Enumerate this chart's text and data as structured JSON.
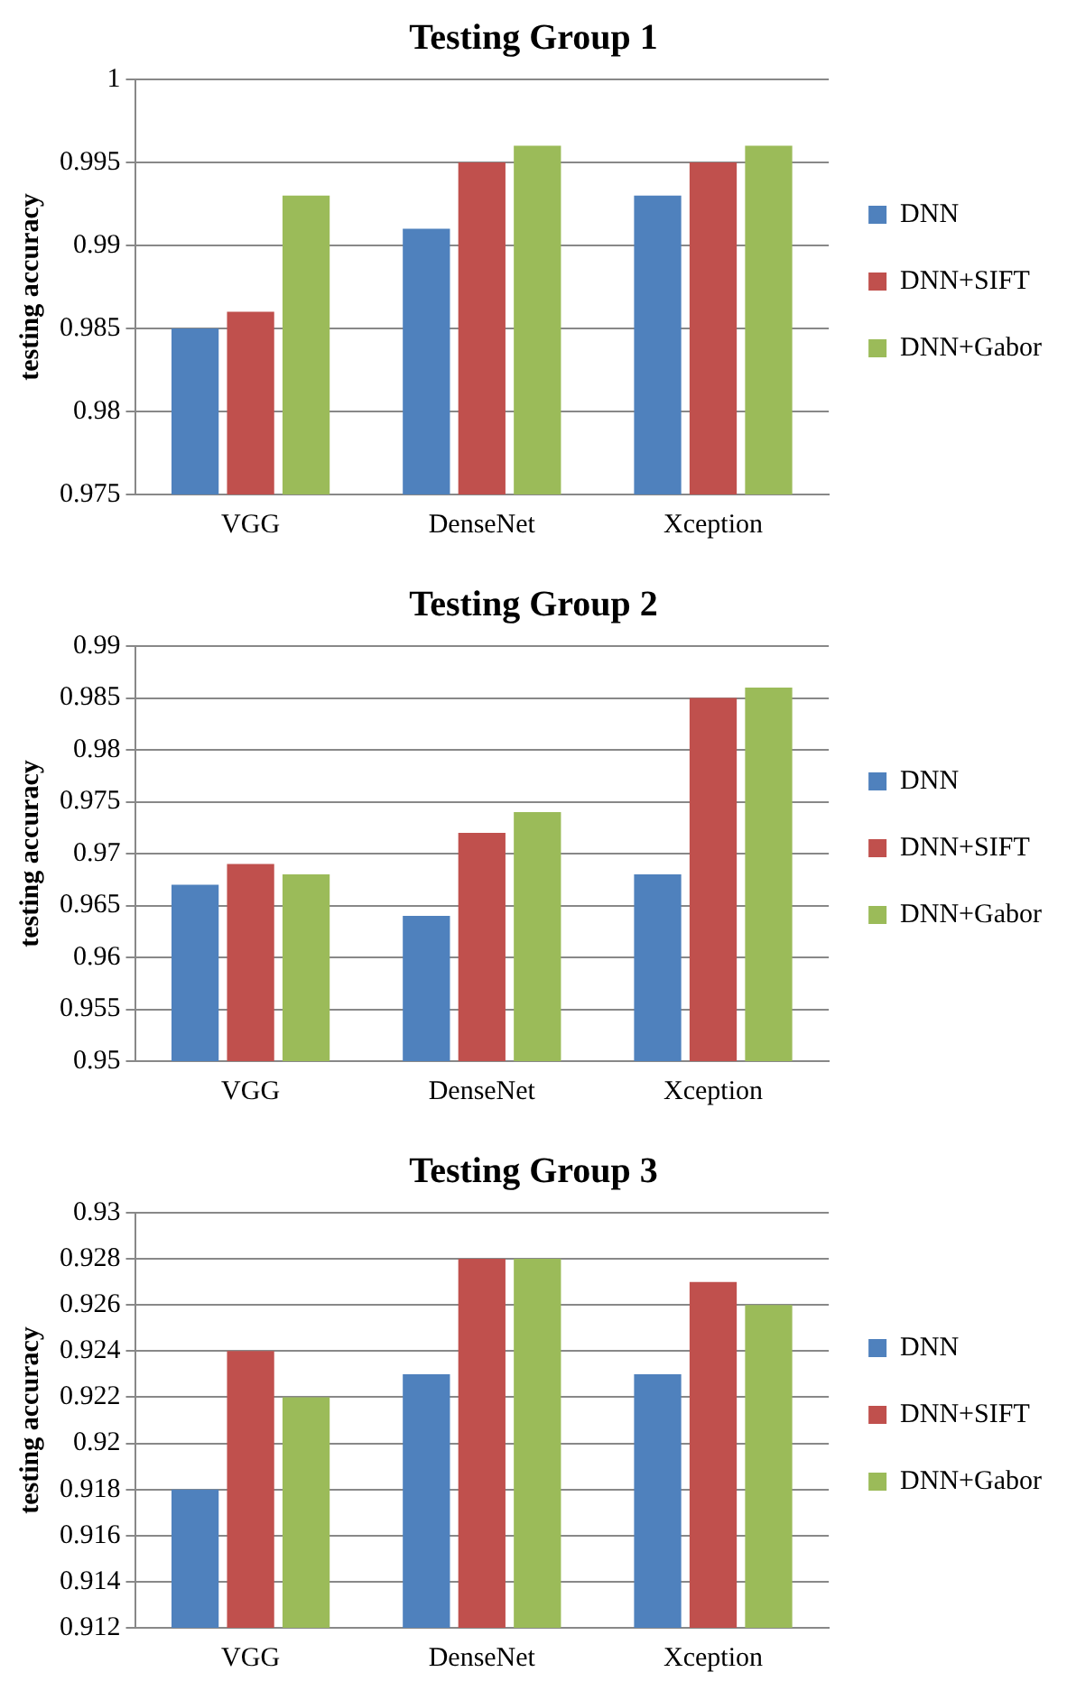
{
  "chart_data": [
    {
      "type": "bar",
      "title": "Testing Group 1",
      "ylabel": "testing accuracy",
      "categories": [
        "VGG",
        "DenseNet",
        "Xception"
      ],
      "series": [
        {
          "name": "DNN",
          "color": "#4f81bd",
          "values": [
            0.985,
            0.991,
            0.993
          ]
        },
        {
          "name": "DNN+SIFT",
          "color": "#c0504d",
          "values": [
            0.986,
            0.995,
            0.995
          ]
        },
        {
          "name": "DNN+Gabor",
          "color": "#9bbb59",
          "values": [
            0.993,
            0.996,
            0.996
          ]
        }
      ],
      "ylim": [
        0.975,
        1
      ],
      "yticks": [
        0.975,
        0.98,
        0.985,
        0.99,
        0.995,
        1
      ],
      "grid": "y",
      "legend": "right"
    },
    {
      "type": "bar",
      "title": "Testing Group 2",
      "ylabel": "testing accuracy",
      "categories": [
        "VGG",
        "DenseNet",
        "Xception"
      ],
      "series": [
        {
          "name": "DNN",
          "color": "#4f81bd",
          "values": [
            0.967,
            0.964,
            0.968
          ]
        },
        {
          "name": "DNN+SIFT",
          "color": "#c0504d",
          "values": [
            0.969,
            0.972,
            0.985
          ]
        },
        {
          "name": "DNN+Gabor",
          "color": "#9bbb59",
          "values": [
            0.968,
            0.974,
            0.986
          ]
        }
      ],
      "ylim": [
        0.95,
        0.99
      ],
      "yticks": [
        0.95,
        0.955,
        0.96,
        0.965,
        0.97,
        0.975,
        0.98,
        0.985,
        0.99
      ],
      "grid": "y",
      "legend": "right"
    },
    {
      "type": "bar",
      "title": "Testing Group 3",
      "ylabel": "testing accuracy",
      "categories": [
        "VGG",
        "DenseNet",
        "Xception"
      ],
      "series": [
        {
          "name": "DNN",
          "color": "#4f81bd",
          "values": [
            0.918,
            0.923,
            0.923
          ]
        },
        {
          "name": "DNN+SIFT",
          "color": "#c0504d",
          "values": [
            0.924,
            0.928,
            0.927
          ]
        },
        {
          "name": "DNN+Gabor",
          "color": "#9bbb59",
          "values": [
            0.922,
            0.928,
            0.926
          ]
        }
      ],
      "ylim": [
        0.912,
        0.93
      ],
      "yticks": [
        0.912,
        0.914,
        0.916,
        0.918,
        0.92,
        0.922,
        0.924,
        0.926,
        0.928,
        0.93
      ],
      "grid": "y",
      "legend": "right"
    }
  ]
}
